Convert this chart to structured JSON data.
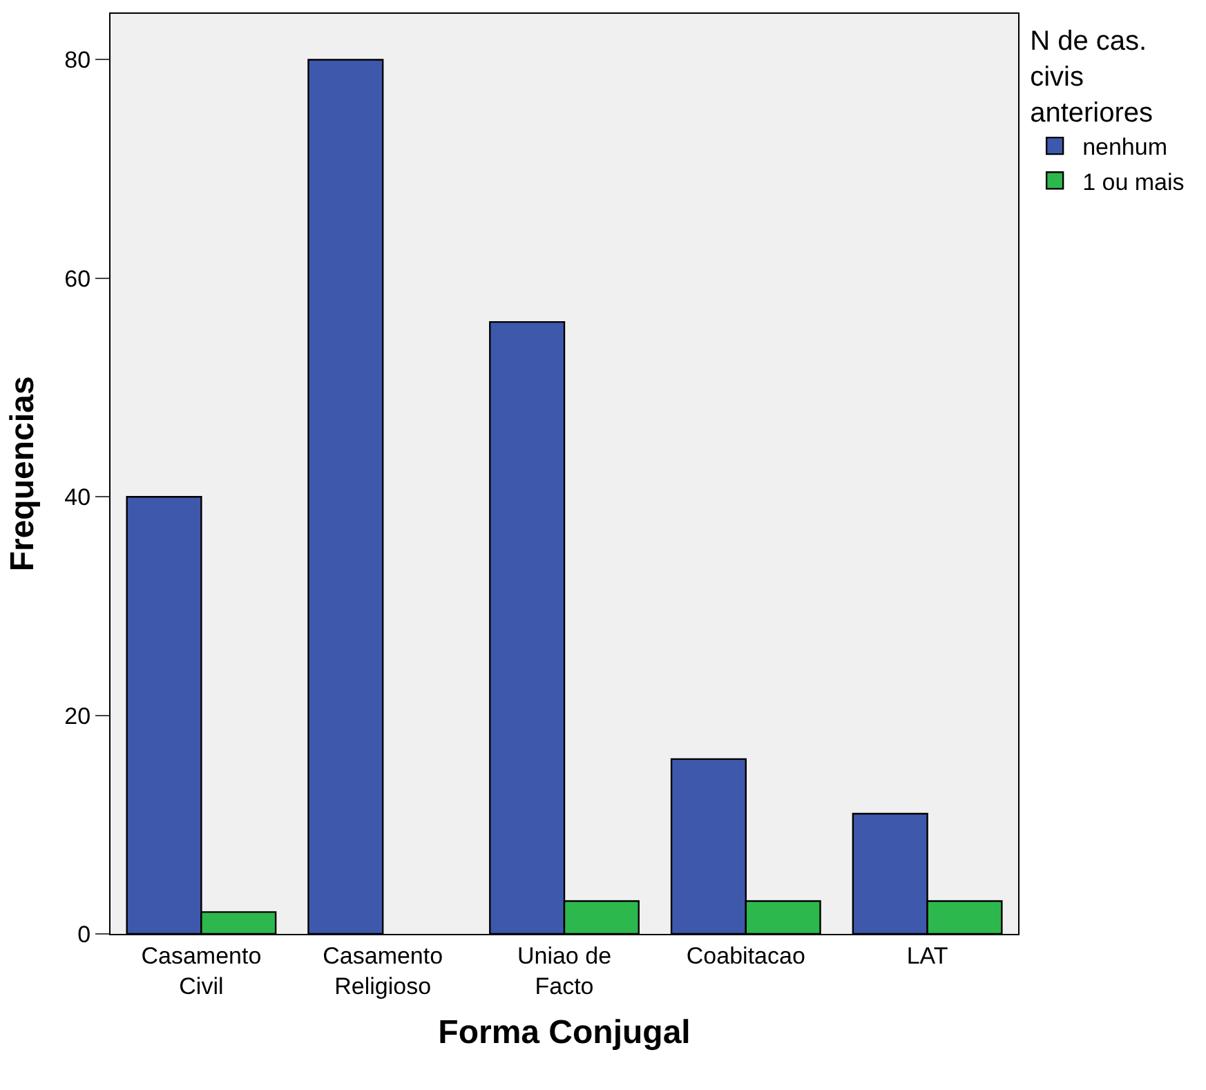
{
  "chart_data": {
    "type": "bar",
    "xlabel": "Forma Conjugal",
    "ylabel": "Frequencias",
    "legend_title": "N de cas. civis anteriores",
    "categories": [
      "Casamento Civil",
      "Casamento Religioso",
      "Uniao de Facto",
      "Coabitacao",
      "LAT"
    ],
    "series": [
      {
        "name": "nenhum",
        "color": "#3e58ac",
        "values": [
          40,
          80,
          56,
          16,
          11
        ]
      },
      {
        "name": "1 ou mais",
        "color": "#2db84d",
        "values": [
          2,
          null,
          3,
          3,
          3
        ]
      }
    ],
    "ylim": [
      0,
      84.2
    ],
    "yticks": [
      0,
      20,
      40,
      60,
      80
    ],
    "grid": false,
    "legend": "top right"
  }
}
